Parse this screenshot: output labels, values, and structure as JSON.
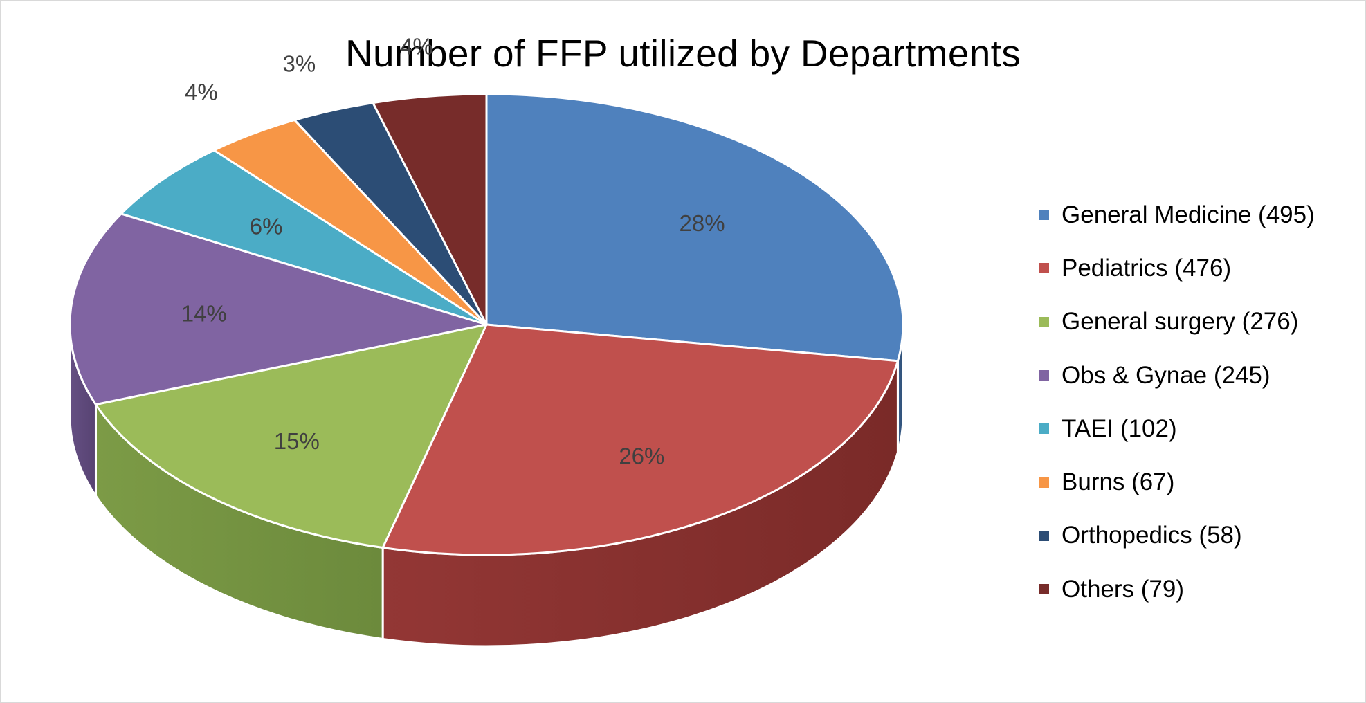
{
  "chart_data": {
    "type": "pie",
    "style": "3d",
    "title": "Number of FFP utilized by Departments",
    "legend_position": "right",
    "slices": [
      {
        "label": "General Medicine",
        "legend_label": "General Medicine (495)",
        "value": 495,
        "percent_label": "28%",
        "color": "#4F81BD",
        "side_color": "#2F4E74"
      },
      {
        "label": "Pediatrics",
        "legend_label": "Pediatrics (476)",
        "value": 476,
        "percent_label": "26%",
        "color": "#C0504D",
        "side_color": "#7A2A28"
      },
      {
        "label": "General surgery",
        "legend_label": "General surgery (276)",
        "value": 276,
        "percent_label": "15%",
        "color": "#9BBB59",
        "side_color": "#6C8A3C"
      },
      {
        "label": "Obs & Gynae",
        "legend_label": "Obs & Gynae (245)",
        "value": 245,
        "percent_label": "14%",
        "color": "#8064A2",
        "side_color": "#574372"
      },
      {
        "label": "TAEI",
        "legend_label": "TAEI (102)",
        "value": 102,
        "percent_label": "6%",
        "color": "#4BACC6",
        "side_color": "#2D788C"
      },
      {
        "label": "Burns",
        "legend_label": "Burns (67)",
        "value": 67,
        "percent_label": "4%",
        "color": "#F79646",
        "side_color": "#B06626"
      },
      {
        "label": "Orthopedics",
        "legend_label": "Orthopedics (58)",
        "value": 58,
        "percent_label": "3%",
        "color": "#2C4D75",
        "side_color": "#1C3350"
      },
      {
        "label": "Others",
        "legend_label": "Others (79)",
        "value": 79,
        "percent_label": "4%",
        "color": "#772C2A",
        "side_color": "#4F1D1C"
      }
    ]
  }
}
